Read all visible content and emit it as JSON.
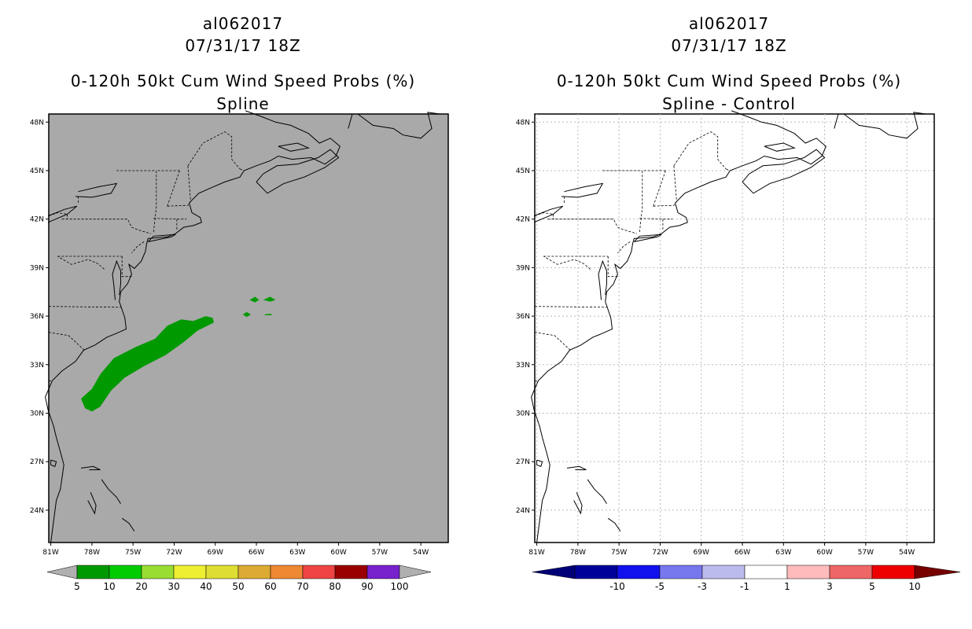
{
  "panels": [
    {
      "storm_id": "al062017",
      "datetime": "07/31/17 18Z",
      "product": "0-120h 50kt Cum Wind Speed Probs (%)",
      "subtitle": "Spline",
      "background": "#a9a9a9",
      "legend": {
        "labels": [
          "5",
          "10",
          "20",
          "30",
          "40",
          "50",
          "60",
          "70",
          "80",
          "90",
          "100"
        ],
        "colors": [
          "#009900",
          "#00cc00",
          "#99dd33",
          "#eeee33",
          "#dddd33",
          "#ddaa33",
          "#ee8833",
          "#ee4444",
          "#990000",
          "#7722cc"
        ],
        "arrow_color": "#b0b0b0"
      },
      "field_color": "#009900"
    },
    {
      "storm_id": "al062017",
      "datetime": "07/31/17 18Z",
      "product": "0-120h 50kt Cum Wind Speed Probs (%)",
      "subtitle": "Spline - Control",
      "background": "#ffffff",
      "legend": {
        "labels": [
          "-10",
          "-5",
          "-3",
          "-1",
          "1",
          "3",
          "5",
          "10"
        ],
        "colors": [
          "#000099",
          "#1111ee",
          "#7777ee",
          "#bbbbee",
          "#ffffff",
          "#ffbbbb",
          "#ee6666",
          "#ee0000"
        ],
        "arrow_left": "#000077",
        "arrow_right": "#770000"
      }
    }
  ],
  "axes": {
    "lat_labels": [
      "48N",
      "45N",
      "42N",
      "39N",
      "36N",
      "33N",
      "30N",
      "27N",
      "24N"
    ],
    "lon_labels": [
      "81W",
      "78W",
      "75W",
      "72W",
      "69W",
      "66W",
      "63W",
      "60W",
      "57W",
      "54W"
    ]
  }
}
